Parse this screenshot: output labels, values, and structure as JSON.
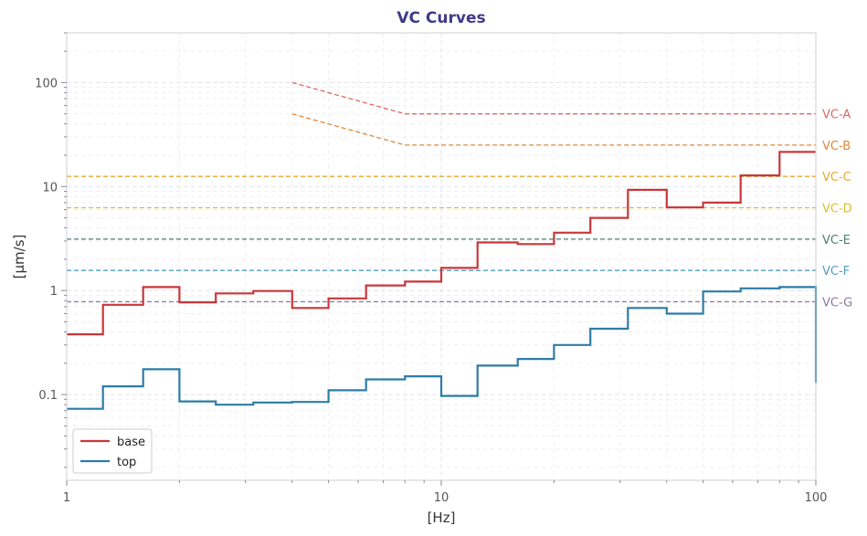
{
  "chart_data": {
    "type": "line",
    "title": "VC Curves",
    "xlabel": "[Hz]",
    "ylabel": "[µm/s]",
    "xscale": "log",
    "yscale": "log",
    "xlim": [
      1,
      100
    ],
    "ylim": [
      0.015,
      300
    ],
    "grid": true,
    "legend_position": "lower-left",
    "x_tick_labels": [
      "1",
      "10",
      "100"
    ],
    "y_tick_labels": [
      "0.1",
      "1",
      "10",
      "100"
    ],
    "colors": {
      "title": "#3f3a8a",
      "base": "#c8373a",
      "top": "#2d7ca6"
    },
    "series": [
      {
        "name": "base",
        "style": "step",
        "color": "#c8373a",
        "x": [
          1,
          1.25,
          1.6,
          2,
          2.5,
          3.15,
          4,
          5,
          6.3,
          8,
          10,
          12.5,
          16,
          20,
          25,
          31.5,
          40,
          50,
          63,
          80,
          100
        ],
        "y": [
          0.38,
          0.73,
          1.08,
          0.77,
          0.94,
          0.99,
          0.68,
          0.84,
          1.12,
          1.22,
          1.65,
          2.9,
          2.8,
          3.6,
          5.0,
          9.3,
          6.3,
          7.0,
          12.8,
          21.5,
          21.5
        ]
      },
      {
        "name": "top",
        "style": "step",
        "color": "#2d7ca6",
        "x": [
          1,
          1.25,
          1.6,
          2,
          2.5,
          3.15,
          4,
          5,
          6.3,
          8,
          10,
          12.5,
          16,
          20,
          25,
          31.5,
          40,
          50,
          63,
          80,
          100
        ],
        "y": [
          0.073,
          0.12,
          0.175,
          0.086,
          0.08,
          0.084,
          0.085,
          0.11,
          0.14,
          0.15,
          0.097,
          0.19,
          0.22,
          0.3,
          0.43,
          0.68,
          0.6,
          0.98,
          1.05,
          1.08,
          0.13
        ]
      }
    ],
    "vc_curves": [
      {
        "label": "VC-A",
        "color": "#d96a62",
        "x": [
          4,
          8,
          100
        ],
        "y": [
          100,
          50,
          50
        ]
      },
      {
        "label": "VC-B",
        "color": "#e0873a",
        "x": [
          4,
          8,
          100
        ],
        "y": [
          50,
          25,
          25
        ]
      },
      {
        "label": "VC-C",
        "color": "#e8a72e",
        "x": [
          1,
          100
        ],
        "y": [
          12.5,
          12.5
        ]
      },
      {
        "label": "VC-D",
        "color": "#d8bf2a",
        "x": [
          1,
          100
        ],
        "y": [
          6.25,
          6.25
        ]
      },
      {
        "label": "VC-E",
        "color": "#4a7f73",
        "x": [
          1,
          100
        ],
        "y": [
          3.12,
          3.12
        ]
      },
      {
        "label": "VC-F",
        "color": "#4d9cc2",
        "x": [
          1,
          100
        ],
        "y": [
          1.56,
          1.56
        ]
      },
      {
        "label": "VC-G",
        "color": "#8a7aa2",
        "x": [
          1,
          100
        ],
        "y": [
          0.78,
          0.78
        ]
      }
    ]
  }
}
